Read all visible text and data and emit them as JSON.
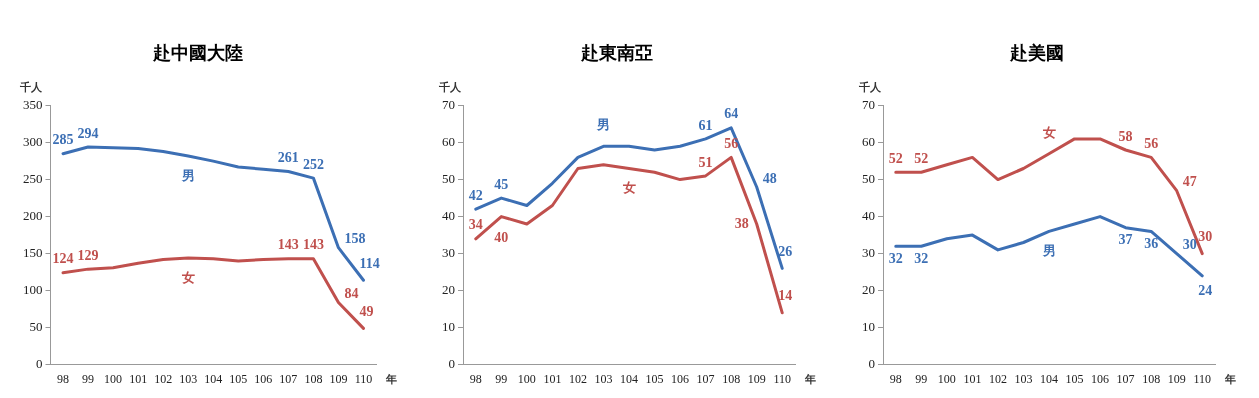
{
  "chart_data": [
    {
      "type": "line",
      "title": "赴中國大陸",
      "xlabel": "年",
      "ylabel": "千人",
      "categories": [
        "98",
        "99",
        "100",
        "101",
        "102",
        "103",
        "104",
        "105",
        "106",
        "107",
        "108",
        "109",
        "110"
      ],
      "ylim": [
        0,
        350
      ],
      "yticks": [
        0,
        50,
        100,
        150,
        200,
        250,
        300,
        350
      ],
      "grid": false,
      "legend": false,
      "marker": "none",
      "line_style": "solid",
      "series": [
        {
          "name": "男",
          "color": "#3c6fb4",
          "values": [
            285,
            294,
            293,
            292,
            288,
            282,
            275,
            267,
            264,
            261,
            252,
            158,
            114
          ],
          "value_labels": [
            "285",
            "294",
            null,
            null,
            null,
            null,
            null,
            null,
            null,
            "261",
            "252",
            "158",
            "114"
          ]
        },
        {
          "name": "女",
          "color": "#c0504d",
          "values": [
            124,
            129,
            131,
            137,
            142,
            144,
            143,
            140,
            142,
            143,
            143,
            84,
            49
          ],
          "value_labels": [
            "124",
            "129",
            null,
            null,
            null,
            null,
            null,
            null,
            null,
            "143",
            "143",
            "84",
            "49"
          ]
        }
      ]
    },
    {
      "type": "line",
      "title": "赴東南亞",
      "xlabel": "年",
      "ylabel": "千人",
      "categories": [
        "98",
        "99",
        "100",
        "101",
        "102",
        "103",
        "104",
        "105",
        "106",
        "107",
        "108",
        "109",
        "110"
      ],
      "ylim": [
        0,
        70
      ],
      "yticks": [
        0,
        10,
        20,
        30,
        40,
        50,
        60,
        70
      ],
      "grid": false,
      "legend": false,
      "marker": "none",
      "line_style": "solid",
      "series": [
        {
          "name": "男",
          "color": "#3c6fb4",
          "values": [
            42,
            45,
            43,
            49,
            56,
            59,
            59,
            58,
            59,
            61,
            64,
            48,
            26
          ],
          "value_labels": [
            "42",
            "45",
            null,
            null,
            null,
            null,
            null,
            null,
            null,
            "61",
            "64",
            "48",
            "26"
          ]
        },
        {
          "name": "女",
          "color": "#c0504d",
          "values": [
            34,
            40,
            38,
            43,
            53,
            54,
            53,
            52,
            50,
            51,
            56,
            38,
            14
          ],
          "value_labels": [
            "34",
            "40",
            null,
            null,
            null,
            null,
            null,
            null,
            null,
            "51",
            "56",
            "38",
            "14"
          ]
        }
      ]
    },
    {
      "type": "line",
      "title": "赴美國",
      "xlabel": "年",
      "ylabel": "千人",
      "categories": [
        "98",
        "99",
        "100",
        "101",
        "102",
        "103",
        "104",
        "105",
        "106",
        "107",
        "108",
        "109",
        "110"
      ],
      "ylim": [
        0,
        70
      ],
      "yticks": [
        0,
        10,
        20,
        30,
        40,
        50,
        60,
        70
      ],
      "grid": false,
      "legend": false,
      "marker": "none",
      "line_style": "solid",
      "series": [
        {
          "name": "女",
          "color": "#c0504d",
          "values": [
            52,
            52,
            54,
            56,
            50,
            53,
            57,
            61,
            61,
            58,
            56,
            47,
            30
          ],
          "value_labels": [
            "52",
            "52",
            null,
            null,
            null,
            null,
            null,
            null,
            null,
            "58",
            "56",
            "47",
            "30"
          ]
        },
        {
          "name": "男",
          "color": "#3c6fb4",
          "values": [
            32,
            32,
            34,
            35,
            31,
            33,
            36,
            38,
            40,
            37,
            36,
            30,
            24
          ],
          "value_labels": [
            "32",
            "32",
            null,
            null,
            null,
            null,
            null,
            null,
            null,
            "37",
            "36",
            "30",
            "24"
          ]
        }
      ]
    }
  ]
}
